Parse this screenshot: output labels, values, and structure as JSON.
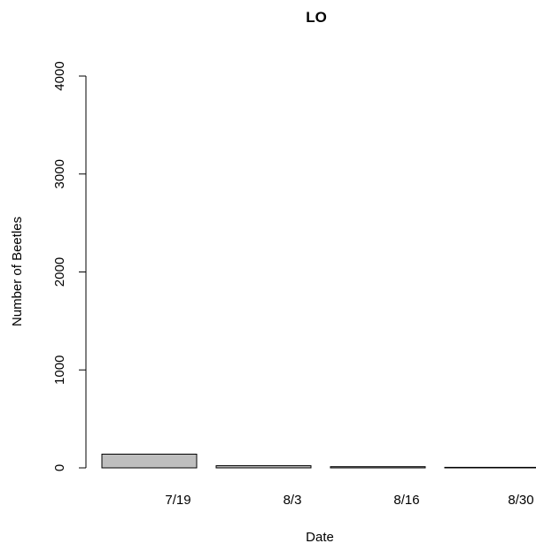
{
  "chart_data": {
    "type": "bar",
    "title": "LO",
    "xlabel": "Date",
    "ylabel": "Number of Beetles",
    "categories": [
      "7/19",
      "8/3",
      "8/16",
      "8/30"
    ],
    "values": [
      140,
      22,
      12,
      5
    ],
    "ylim": [
      0,
      4000
    ],
    "yticks": [
      "0",
      "1000",
      "2000",
      "3000",
      "4000"
    ],
    "grid": false,
    "legend": "none",
    "colors": {
      "bar_fill": "#bebebe",
      "bar_stroke": "#000000"
    }
  }
}
